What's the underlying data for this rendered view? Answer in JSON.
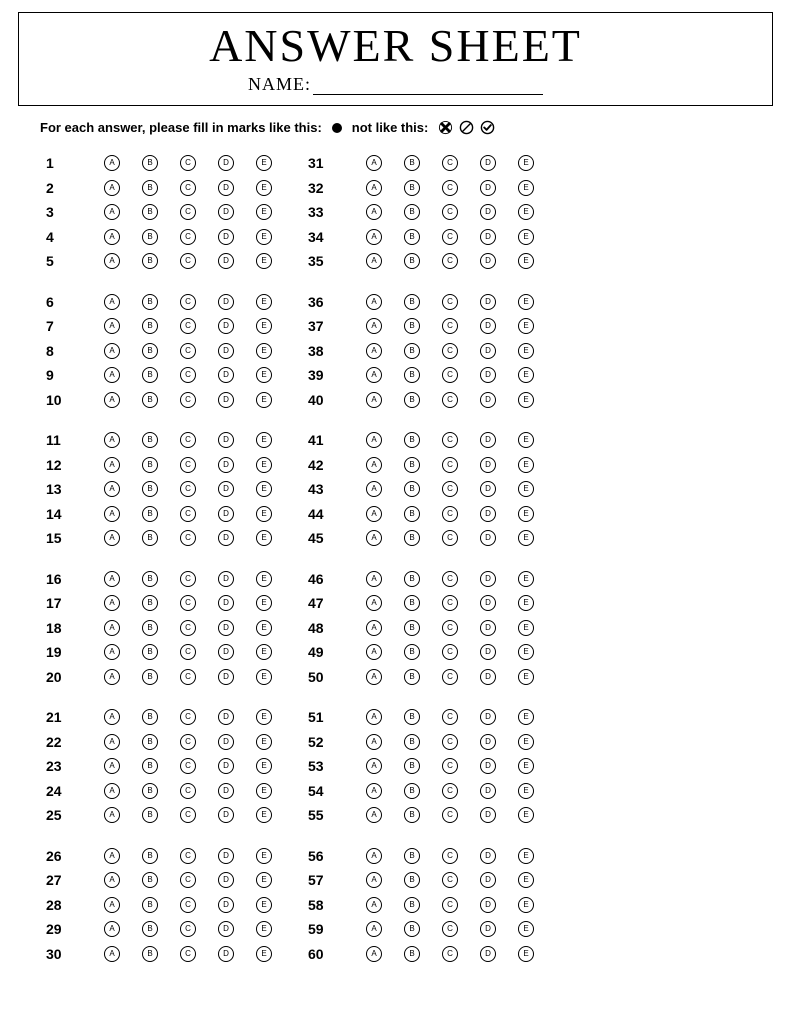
{
  "header": {
    "title": "ANSWER SHEET",
    "name_label": "NAME:"
  },
  "instruction": {
    "prefix": "For each answer, please fill in marks like this:",
    "suffix": "not like this:"
  },
  "options": [
    "A",
    "B",
    "C",
    "D",
    "E"
  ],
  "layout": {
    "total_questions": 60,
    "columns": 2,
    "rows_per_column": 30,
    "group_size": 5,
    "bubble_border": "#000000",
    "background": "#ffffff",
    "text_color": "#000000",
    "title_fontsize": 46,
    "name_fontsize": 18,
    "instruction_fontsize": 13,
    "qnum_fontsize": 14,
    "bubble_letter_fontsize": 8,
    "bubble_diameter": 16,
    "bubble_gap": 22,
    "row_height": 24.5,
    "group_gap": 16
  }
}
